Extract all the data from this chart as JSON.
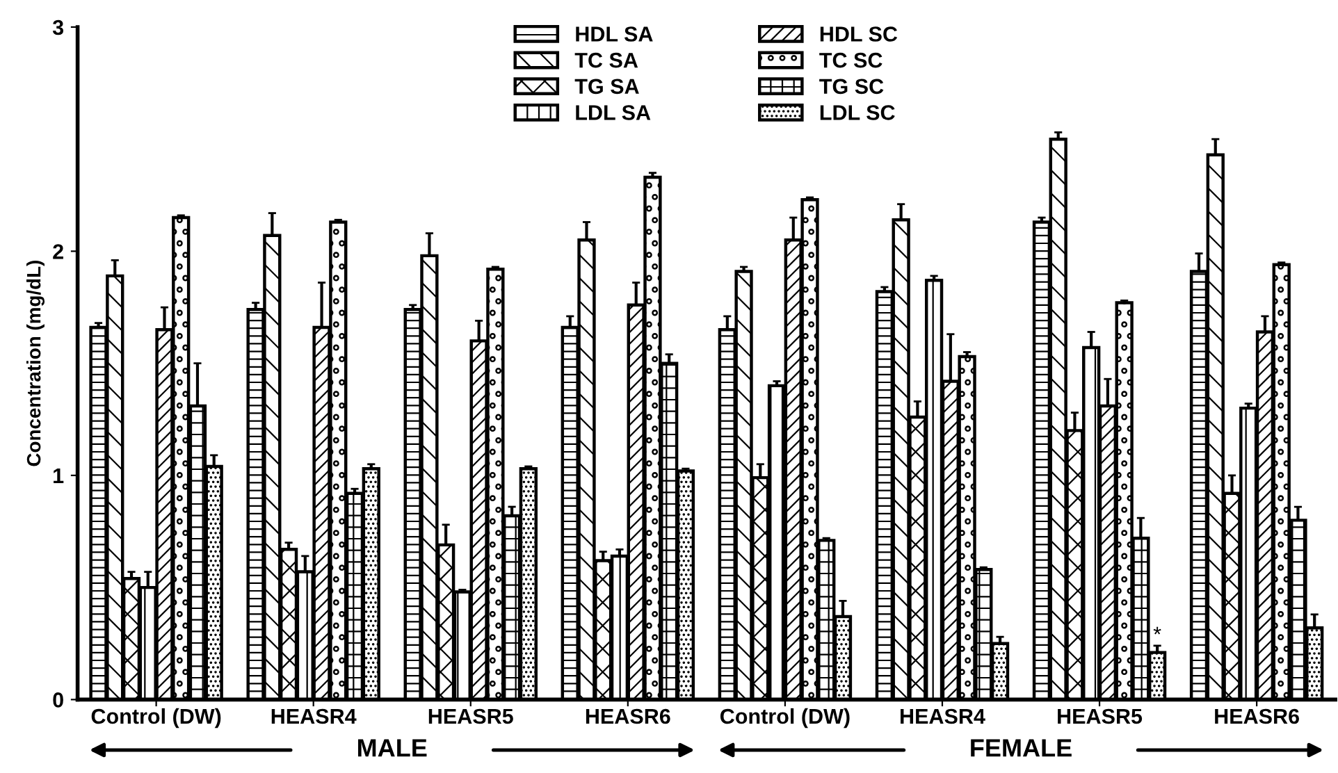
{
  "chart_data": {
    "type": "bar",
    "ylabel": "Concentration (mg/dL)",
    "categories": [
      "Control (DW)",
      "HEASR4",
      "HEASR5",
      "HEASR6",
      "Control (DW)",
      "HEASR4",
      "HEASR5",
      "HEASR6"
    ],
    "series": [
      {
        "name": "HDL SA",
        "color": "#000000",
        "values": [
          1.66,
          1.74,
          1.74,
          1.66,
          1.65,
          1.82,
          2.13,
          1.91
        ],
        "errors": [
          0.02,
          0.03,
          0.02,
          0.05,
          0.06,
          0.02,
          0.02,
          0.08
        ]
      },
      {
        "name": "TC SA",
        "color": "#000000",
        "values": [
          1.89,
          2.07,
          1.98,
          2.05,
          1.91,
          2.14,
          2.5,
          2.43
        ],
        "errors": [
          0.07,
          0.1,
          0.1,
          0.08,
          0.02,
          0.07,
          0.03,
          0.07
        ]
      },
      {
        "name": "TG SA",
        "color": "#000000",
        "values": [
          0.54,
          0.67,
          0.69,
          0.62,
          0.99,
          1.26,
          1.2,
          0.92
        ],
        "errors": [
          0.03,
          0.03,
          0.09,
          0.04,
          0.06,
          0.07,
          0.08,
          0.08
        ]
      },
      {
        "name": "LDL SA",
        "color": "#000000",
        "values": [
          0.5,
          0.57,
          0.48,
          0.64,
          1.4,
          1.87,
          1.57,
          1.3
        ],
        "errors": [
          0.07,
          0.07,
          0.01,
          0.03,
          0.02,
          0.02,
          0.07,
          0.02
        ]
      },
      {
        "name": "HDL SC",
        "color": "#000000",
        "values": [
          1.65,
          1.66,
          1.6,
          1.76,
          2.05,
          1.42,
          1.31,
          1.64
        ],
        "errors": [
          0.1,
          0.2,
          0.09,
          0.1,
          0.1,
          0.21,
          0.12,
          0.07
        ]
      },
      {
        "name": "TC SC",
        "color": "#000000",
        "values": [
          2.15,
          2.13,
          1.92,
          2.33,
          2.23,
          1.53,
          1.77,
          1.94
        ],
        "errors": [
          0.01,
          0.01,
          0.01,
          0.02,
          0.01,
          0.02,
          0.01,
          0.01
        ]
      },
      {
        "name": "TG SC",
        "color": "#000000",
        "values": [
          1.31,
          0.92,
          0.82,
          1.5,
          0.71,
          0.58,
          0.72,
          0.8
        ],
        "errors": [
          0.19,
          0.02,
          0.04,
          0.04,
          0.01,
          0.01,
          0.09,
          0.06
        ]
      },
      {
        "name": "LDL SC",
        "color": "#000000",
        "values": [
          1.04,
          1.03,
          1.03,
          1.02,
          0.37,
          0.25,
          0.21,
          0.32
        ],
        "errors": [
          0.05,
          0.02,
          0.01,
          0.01,
          0.07,
          0.03,
          0.03,
          0.06
        ],
        "value_labels": [
          null,
          null,
          null,
          null,
          null,
          null,
          "*",
          null
        ]
      }
    ],
    "ylim": [
      0,
      3
    ],
    "yticks": [
      0,
      1,
      2,
      3
    ],
    "grid": false,
    "legend": "top",
    "annotations": [
      "MALE",
      "FEMALE"
    ]
  }
}
